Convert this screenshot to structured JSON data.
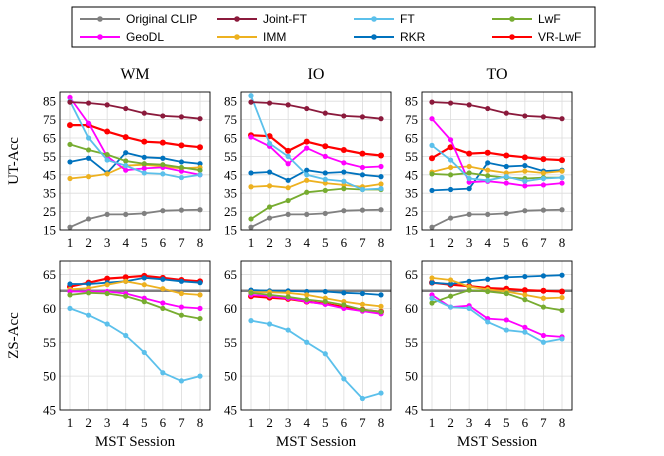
{
  "chart_data": {
    "type": "line",
    "x": [
      1,
      2,
      3,
      4,
      5,
      6,
      7,
      8
    ],
    "xlabel": "MST Session",
    "legend": [
      {
        "name": "Original CLIP",
        "color": "#808080"
      },
      {
        "name": "Joint-FT",
        "color": "#8b1a3c"
      },
      {
        "name": "FT",
        "color": "#5bc0eb"
      },
      {
        "name": "LwF",
        "color": "#77ac30"
      },
      {
        "name": "GeoDL",
        "color": "#ff00ff"
      },
      {
        "name": "IMM",
        "color": "#edb120"
      },
      {
        "name": "RKR",
        "color": "#0072bd"
      },
      {
        "name": "VR-LwF",
        "color": "#ff0000"
      }
    ],
    "rows": [
      {
        "ylabel": "UT-Acc",
        "ylim": [
          15,
          90
        ],
        "yticks": [
          15,
          25,
          35,
          45,
          55,
          65,
          75,
          85
        ],
        "panels": [
          {
            "title": "WM",
            "series": [
              {
                "name": "Original CLIP",
                "values": [
                  16.5,
                  21.0,
                  23.5,
                  23.5,
                  24.0,
                  25.5,
                  25.8,
                  26.0
                ]
              },
              {
                "name": "Joint-FT",
                "values": [
                  84.5,
                  84.0,
                  83.0,
                  81.0,
                  78.5,
                  77.0,
                  76.5,
                  75.5
                ]
              },
              {
                "name": "FT",
                "values": [
                  85.0,
                  65.0,
                  53.0,
                  50.0,
                  46.0,
                  45.5,
                  43.5,
                  45.0
                ]
              },
              {
                "name": "LwF",
                "values": [
                  61.5,
                  58.5,
                  56.0,
                  52.5,
                  51.0,
                  50.5,
                  49.0,
                  47.5
                ]
              },
              {
                "name": "GeoDL",
                "values": [
                  87.0,
                  73.0,
                  55.0,
                  47.5,
                  48.5,
                  49.0,
                  47.0,
                  45.0
                ]
              },
              {
                "name": "IMM",
                "values": [
                  43.0,
                  44.0,
                  45.5,
                  50.0,
                  50.5,
                  49.5,
                  48.5,
                  49.0
                ]
              },
              {
                "name": "RKR",
                "values": [
                  52.0,
                  54.0,
                  46.0,
                  57.0,
                  54.5,
                  54.0,
                  52.0,
                  51.0
                ]
              },
              {
                "name": "VR-LwF",
                "values": [
                  72.0,
                  72.0,
                  68.5,
                  65.5,
                  63.0,
                  62.5,
                  61.0,
                  60.0
                ]
              }
            ]
          },
          {
            "title": "IO",
            "series": [
              {
                "name": "Original CLIP",
                "values": [
                  16.5,
                  21.5,
                  23.5,
                  23.5,
                  24.0,
                  25.5,
                  25.8,
                  26.0
                ]
              },
              {
                "name": "Joint-FT",
                "values": [
                  84.5,
                  84.0,
                  83.0,
                  81.0,
                  78.5,
                  77.0,
                  76.5,
                  75.5
                ]
              },
              {
                "name": "FT",
                "values": [
                  88.0,
                  62.0,
                  55.0,
                  45.0,
                  42.5,
                  41.5,
                  37.0,
                  37.5
                ]
              },
              {
                "name": "LwF",
                "values": [
                  21.0,
                  27.5,
                  31.0,
                  35.5,
                  36.5,
                  37.5,
                  37.0,
                  37.0
                ]
              },
              {
                "name": "GeoDL",
                "values": [
                  65.5,
                  60.5,
                  51.0,
                  59.5,
                  55.0,
                  51.5,
                  49.0,
                  49.5
                ]
              },
              {
                "name": "IMM",
                "values": [
                  38.5,
                  39.0,
                  38.0,
                  42.0,
                  40.5,
                  39.5,
                  38.5,
                  40.0
                ]
              },
              {
                "name": "RKR",
                "values": [
                  46.0,
                  46.5,
                  42.0,
                  47.5,
                  46.0,
                  46.5,
                  45.0,
                  44.0
                ]
              },
              {
                "name": "VR-LwF",
                "values": [
                  66.5,
                  66.0,
                  58.0,
                  63.0,
                  60.5,
                  58.5,
                  56.5,
                  55.5
                ]
              }
            ]
          },
          {
            "title": "TO",
            "series": [
              {
                "name": "Original CLIP",
                "values": [
                  16.5,
                  21.5,
                  23.5,
                  23.5,
                  24.0,
                  25.5,
                  25.8,
                  26.0
                ]
              },
              {
                "name": "Joint-FT",
                "values": [
                  84.5,
                  84.0,
                  83.0,
                  81.0,
                  78.5,
                  77.0,
                  76.5,
                  75.5
                ]
              },
              {
                "name": "FT",
                "values": [
                  61.0,
                  53.0,
                  43.0,
                  42.0,
                  44.0,
                  41.5,
                  43.0,
                  43.5
                ]
              },
              {
                "name": "LwF",
                "values": [
                  45.5,
                  45.0,
                  46.0,
                  44.5,
                  43.5,
                  43.0,
                  43.5,
                  43.5
                ]
              },
              {
                "name": "GeoDL",
                "values": [
                  75.5,
                  64.0,
                  41.0,
                  41.5,
                  40.5,
                  39.0,
                  39.5,
                  40.5
                ]
              },
              {
                "name": "IMM",
                "values": [
                  46.5,
                  49.0,
                  49.5,
                  47.5,
                  46.0,
                  47.0,
                  46.0,
                  47.0
                ]
              },
              {
                "name": "RKR",
                "values": [
                  36.5,
                  37.0,
                  37.5,
                  51.5,
                  49.5,
                  50.0,
                  47.0,
                  47.5
                ]
              },
              {
                "name": "VR-LwF",
                "values": [
                  54.0,
                  60.0,
                  56.5,
                  57.0,
                  55.5,
                  54.5,
                  53.5,
                  53.0
                ]
              }
            ]
          }
        ]
      },
      {
        "ylabel": "ZS-Acc",
        "ylim": [
          45,
          67
        ],
        "yticks": [
          45,
          50,
          55,
          60,
          65
        ],
        "reference_value": 62.6,
        "panels": [
          {
            "title": "",
            "series": [
              {
                "name": "Original CLIP",
                "values": [
                  62.6,
                  62.6,
                  62.6,
                  62.6,
                  62.6,
                  62.6,
                  62.6,
                  62.6
                ]
              },
              {
                "name": "FT",
                "values": [
                  60.0,
                  59.0,
                  57.7,
                  56.0,
                  53.5,
                  50.5,
                  49.3,
                  50.0
                ]
              },
              {
                "name": "LwF",
                "values": [
                  62.0,
                  62.3,
                  62.2,
                  61.8,
                  61.0,
                  60.0,
                  59.0,
                  58.5
                ]
              },
              {
                "name": "GeoDL",
                "values": [
                  62.5,
                  62.5,
                  62.5,
                  62.2,
                  61.5,
                  60.8,
                  60.2,
                  60.0
                ]
              },
              {
                "name": "IMM",
                "values": [
                  62.8,
                  63.0,
                  63.5,
                  64.0,
                  63.5,
                  62.9,
                  62.2,
                  62.0
                ]
              },
              {
                "name": "RKR",
                "values": [
                  63.6,
                  63.6,
                  63.8,
                  64.0,
                  64.5,
                  64.3,
                  64.0,
                  63.8
                ]
              },
              {
                "name": "VR-LwF",
                "values": [
                  63.2,
                  63.8,
                  64.4,
                  64.6,
                  64.8,
                  64.5,
                  64.2,
                  64.0
                ]
              }
            ]
          },
          {
            "title": "",
            "series": [
              {
                "name": "Original CLIP",
                "values": [
                  62.6,
                  62.6,
                  62.6,
                  62.6,
                  62.6,
                  62.6,
                  62.6,
                  62.6
                ]
              },
              {
                "name": "FT",
                "values": [
                  58.2,
                  57.7,
                  56.8,
                  55.0,
                  53.3,
                  49.6,
                  46.7,
                  47.5
                ]
              },
              {
                "name": "LwF",
                "values": [
                  62.3,
                  62.0,
                  61.7,
                  61.3,
                  61.0,
                  60.5,
                  59.8,
                  59.5
                ]
              },
              {
                "name": "GeoDL",
                "values": [
                  62.0,
                  61.8,
                  61.5,
                  61.0,
                  60.6,
                  60.0,
                  59.6,
                  59.2
                ]
              },
              {
                "name": "IMM",
                "values": [
                  62.4,
                  62.4,
                  62.3,
                  62.0,
                  61.5,
                  61.0,
                  60.6,
                  60.3
                ]
              },
              {
                "name": "RKR",
                "values": [
                  62.7,
                  62.6,
                  62.6,
                  62.5,
                  62.5,
                  62.3,
                  62.2,
                  62.0
                ]
              },
              {
                "name": "VR-LwF",
                "values": [
                  61.8,
                  61.6,
                  61.4,
                  61.0,
                  60.7,
                  60.2,
                  59.8,
                  59.5
                ]
              }
            ]
          },
          {
            "title": "",
            "series": [
              {
                "name": "Original CLIP",
                "values": [
                  62.6,
                  62.6,
                  62.6,
                  62.6,
                  62.6,
                  62.6,
                  62.6,
                  62.6
                ]
              },
              {
                "name": "FT",
                "values": [
                  61.5,
                  60.2,
                  60.0,
                  58.0,
                  56.8,
                  56.5,
                  55.0,
                  55.5
                ]
              },
              {
                "name": "LwF",
                "values": [
                  60.8,
                  61.8,
                  62.7,
                  62.5,
                  62.2,
                  61.3,
                  60.2,
                  59.7
                ]
              },
              {
                "name": "GeoDL",
                "values": [
                  62.0,
                  60.2,
                  60.4,
                  58.5,
                  58.3,
                  57.2,
                  56.0,
                  55.8
                ]
              },
              {
                "name": "IMM",
                "values": [
                  64.5,
                  64.2,
                  63.2,
                  62.8,
                  62.5,
                  62.0,
                  61.5,
                  61.6
                ]
              },
              {
                "name": "RKR",
                "values": [
                  63.8,
                  63.6,
                  64.0,
                  64.3,
                  64.6,
                  64.7,
                  64.8,
                  64.9
                ]
              },
              {
                "name": "VR-LwF",
                "values": [
                  63.8,
                  63.5,
                  63.3,
                  63.0,
                  62.9,
                  62.7,
                  62.6,
                  62.5
                ]
              }
            ]
          }
        ]
      }
    ]
  }
}
